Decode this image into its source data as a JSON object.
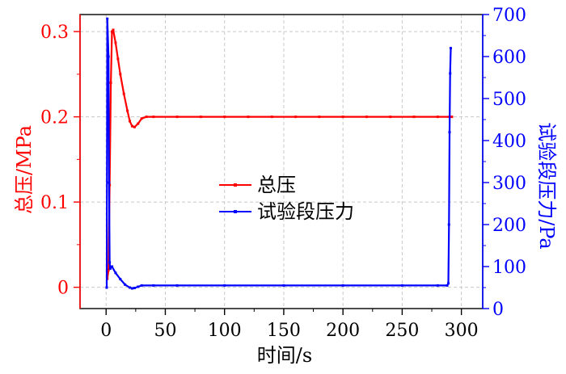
{
  "chart_data": {
    "type": "line",
    "title": "",
    "xlabel": "时间/s",
    "ylabel_left": "总压/MPa",
    "ylabel_right": "试验段压力/Pa",
    "xlim": [
      -22,
      318
    ],
    "ylim_left": [
      -0.025,
      0.32
    ],
    "ylim_right": [
      0,
      700
    ],
    "x_ticks": [
      0,
      50,
      100,
      150,
      200,
      250,
      300
    ],
    "x_tick_labels": [
      "0",
      "50",
      "100",
      "150",
      "200",
      "250",
      "300"
    ],
    "y_left_ticks": [
      0,
      0.1,
      0.2,
      0.3
    ],
    "y_left_tick_labels": [
      "0",
      "0.1",
      "0.2",
      "0.3"
    ],
    "y_right_ticks": [
      0,
      100,
      200,
      300,
      400,
      500,
      600,
      700
    ],
    "y_right_tick_labels": [
      "0",
      "100",
      "200",
      "300",
      "400",
      "500",
      "600",
      "700"
    ],
    "grid": true,
    "legend_position": "center",
    "colors": {
      "left_axis": "#ff0000",
      "right_axis": "#0000ff"
    },
    "series": [
      {
        "name": "总压",
        "axis": "left",
        "color": "#ff0000",
        "x": [
          1,
          2,
          3,
          4,
          5,
          6,
          8,
          10,
          12,
          15,
          18,
          20,
          22,
          24,
          27,
          30,
          34,
          40,
          60,
          80,
          100,
          120,
          140,
          160,
          180,
          200,
          220,
          240,
          260,
          280,
          290,
          292
        ],
        "y": [
          0.01,
          0.02,
          0.12,
          0.24,
          0.3,
          0.302,
          0.287,
          0.268,
          0.25,
          0.227,
          0.207,
          0.195,
          0.189,
          0.188,
          0.192,
          0.198,
          0.2,
          0.2,
          0.2,
          0.2,
          0.2,
          0.2,
          0.2,
          0.2,
          0.2,
          0.2,
          0.2,
          0.2,
          0.2,
          0.2,
          0.2,
          0.2
        ]
      },
      {
        "name": "试验段压力",
        "axis": "right",
        "color": "#0000ff",
        "x": [
          0.5,
          1,
          2,
          2.5,
          3,
          3.5,
          5,
          8,
          12,
          16,
          20,
          22,
          24,
          27,
          30,
          40,
          60,
          100,
          150,
          200,
          250,
          280,
          288,
          289,
          289.5,
          290,
          290.5,
          291
        ],
        "y": [
          50,
          690,
          600,
          300,
          110,
          95,
          100,
          85,
          70,
          57,
          50,
          48,
          49,
          52,
          55,
          55,
          55,
          55,
          55,
          55,
          55,
          55,
          55,
          60,
          200,
          420,
          560,
          620
        ]
      }
    ]
  }
}
